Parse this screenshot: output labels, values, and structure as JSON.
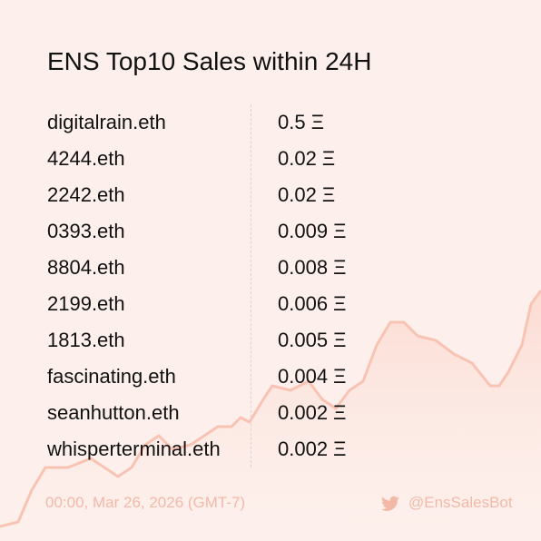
{
  "header": {
    "title": "ENS Top10 Sales within 24H"
  },
  "table": {
    "rows": [
      [
        "digitalrain.eth",
        "0.5 Ξ"
      ],
      [
        "4244.eth",
        "0.02 Ξ"
      ],
      [
        "2242.eth",
        "0.02 Ξ"
      ],
      [
        "0393.eth",
        "0.009 Ξ"
      ],
      [
        "8804.eth",
        "0.008 Ξ"
      ],
      [
        "2199.eth",
        "0.006 Ξ"
      ],
      [
        "1813.eth",
        "0.005 Ξ"
      ],
      [
        "fascinating.eth",
        "0.004 Ξ"
      ],
      [
        "seanhutton.eth",
        "0.002 Ξ"
      ],
      [
        "whisperterminal.eth",
        "0.002 Ξ"
      ]
    ]
  },
  "footer": {
    "timestamp": "00:00, Mar 26, 2026 (GMT-7)",
    "handle": "@EnsSalesBot"
  }
}
